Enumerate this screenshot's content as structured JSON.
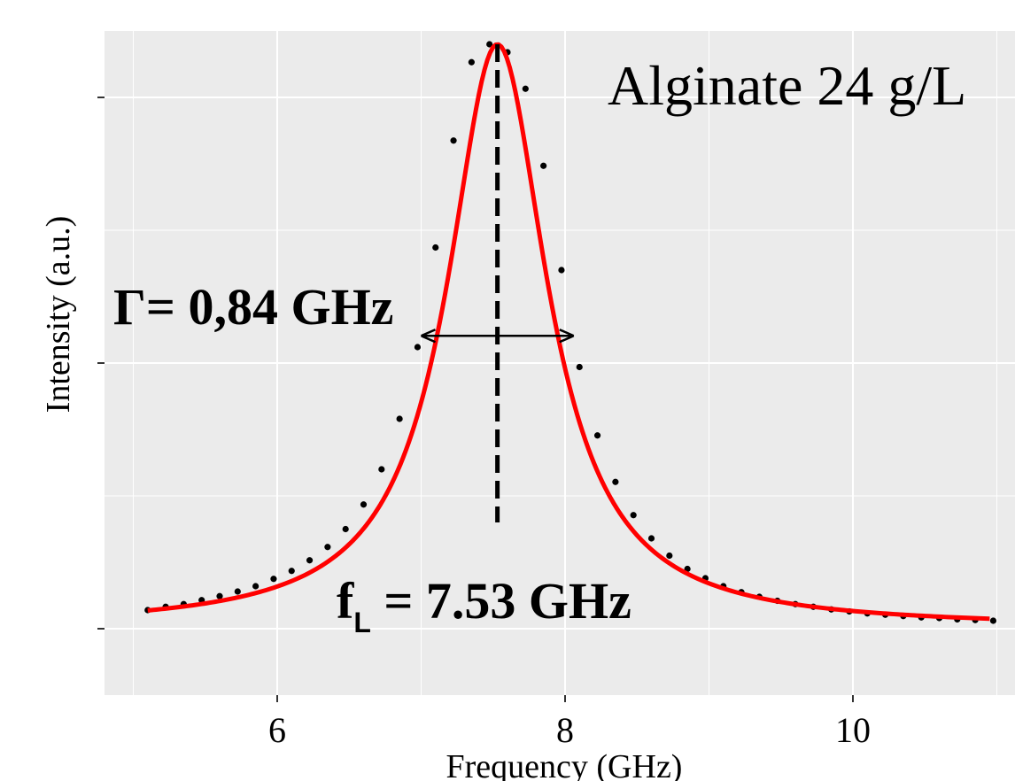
{
  "chart_data": {
    "type": "line",
    "title": "Alginate 24 g/L",
    "xlabel": "Frequency (GHz)",
    "ylabel": "Intensity (a.u.)",
    "xlim": [
      4.8,
      11.2
    ],
    "ylim": [
      0,
      1.0
    ],
    "x_ticks": [
      6,
      8,
      10
    ],
    "x_tick_labels": [
      "6",
      "8",
      "10"
    ],
    "y_ticks": [
      0.1,
      0.5,
      0.9
    ],
    "grid": true,
    "series": [
      {
        "kind": "points",
        "color": "#000000",
        "x": [
          5.1,
          5.225,
          5.35,
          5.475,
          5.6,
          5.725,
          5.85,
          5.975,
          6.1,
          6.225,
          6.35,
          6.475,
          6.6,
          6.725,
          6.85,
          6.975,
          7.1,
          7.225,
          7.35,
          7.475,
          7.6,
          7.725,
          7.85,
          7.975,
          8.1,
          8.225,
          8.35,
          8.475,
          8.6,
          8.725,
          8.85,
          8.975,
          9.1,
          9.225,
          9.35,
          9.475,
          9.6,
          9.725,
          9.85,
          9.975,
          10.1,
          10.225,
          10.35,
          10.475,
          10.6,
          10.725,
          10.85,
          10.975
        ],
        "y": [
          0.128,
          0.133,
          0.137,
          0.143,
          0.149,
          0.156,
          0.164,
          0.175,
          0.187,
          0.203,
          0.223,
          0.25,
          0.287,
          0.34,
          0.416,
          0.524,
          0.674,
          0.835,
          0.953,
          0.98,
          0.968,
          0.913,
          0.797,
          0.64,
          0.494,
          0.391,
          0.321,
          0.271,
          0.236,
          0.21,
          0.19,
          0.176,
          0.164,
          0.155,
          0.148,
          0.142,
          0.137,
          0.133,
          0.129,
          0.126,
          0.123,
          0.121,
          0.119,
          0.117,
          0.116,
          0.114,
          0.113,
          0.112
        ]
      },
      {
        "kind": "fit",
        "color": "#ff0000",
        "x0": 7.53,
        "gamma": 0.84,
        "baseline": 0.102,
        "amplitude": 0.878,
        "x_range": [
          5.1,
          10.95
        ]
      }
    ],
    "annotations": {
      "gamma_label": "Γ= 0,84 GHz",
      "peak_label_base": "f",
      "peak_label_sub": "L",
      "peak_label_value": " = 7.53 GHz",
      "peak_line": {
        "x": 7.53,
        "y_from": 0.26,
        "y_to": 0.98
      },
      "fwhm_arrow": {
        "x_from": 7.0,
        "x_to": 8.06,
        "y": 0.541
      }
    }
  }
}
